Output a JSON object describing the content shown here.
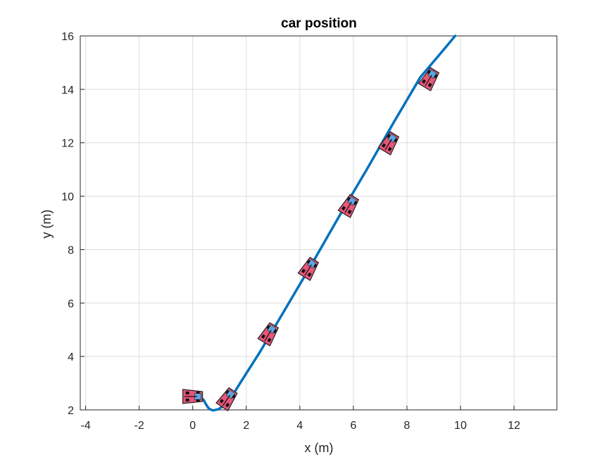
{
  "chart_data": {
    "type": "line",
    "title": "car position",
    "xlabel": "x (m)",
    "ylabel": "y (m)",
    "xlim": [
      -4.2,
      13.6
    ],
    "ylim": [
      2,
      16
    ],
    "xticks": [
      -4,
      -2,
      0,
      2,
      4,
      6,
      8,
      10,
      12
    ],
    "yticks": [
      2,
      4,
      6,
      8,
      10,
      12,
      14,
      16
    ],
    "grid": true,
    "series": [
      {
        "color": "#0072BD",
        "x": [
          0.0,
          0.2,
          0.4,
          0.5,
          0.6,
          0.75,
          0.95,
          1.15,
          1.4,
          1.8,
          2.5,
          3.5,
          4.5,
          5.5,
          6.5,
          7.5,
          8.5,
          9.3,
          9.8
        ],
        "y": [
          2.55,
          2.52,
          2.38,
          2.2,
          2.05,
          1.98,
          2.02,
          2.15,
          2.4,
          3.05,
          4.15,
          5.85,
          7.55,
          9.3,
          11.0,
          12.75,
          14.45,
          15.4,
          16.0
        ]
      }
    ],
    "cars": {
      "color": "#E8567A",
      "poses": [
        {
          "x": 0.0,
          "y": 2.5,
          "heading_deg": 0
        },
        {
          "x": 1.3,
          "y": 2.42,
          "heading_deg": 56
        },
        {
          "x": 2.85,
          "y": 4.85,
          "heading_deg": 59
        },
        {
          "x": 4.35,
          "y": 7.3,
          "heading_deg": 59
        },
        {
          "x": 5.85,
          "y": 9.65,
          "heading_deg": 59
        },
        {
          "x": 7.35,
          "y": 12.0,
          "heading_deg": 59
        },
        {
          "x": 8.85,
          "y": 14.4,
          "heading_deg": 59
        }
      ]
    }
  }
}
